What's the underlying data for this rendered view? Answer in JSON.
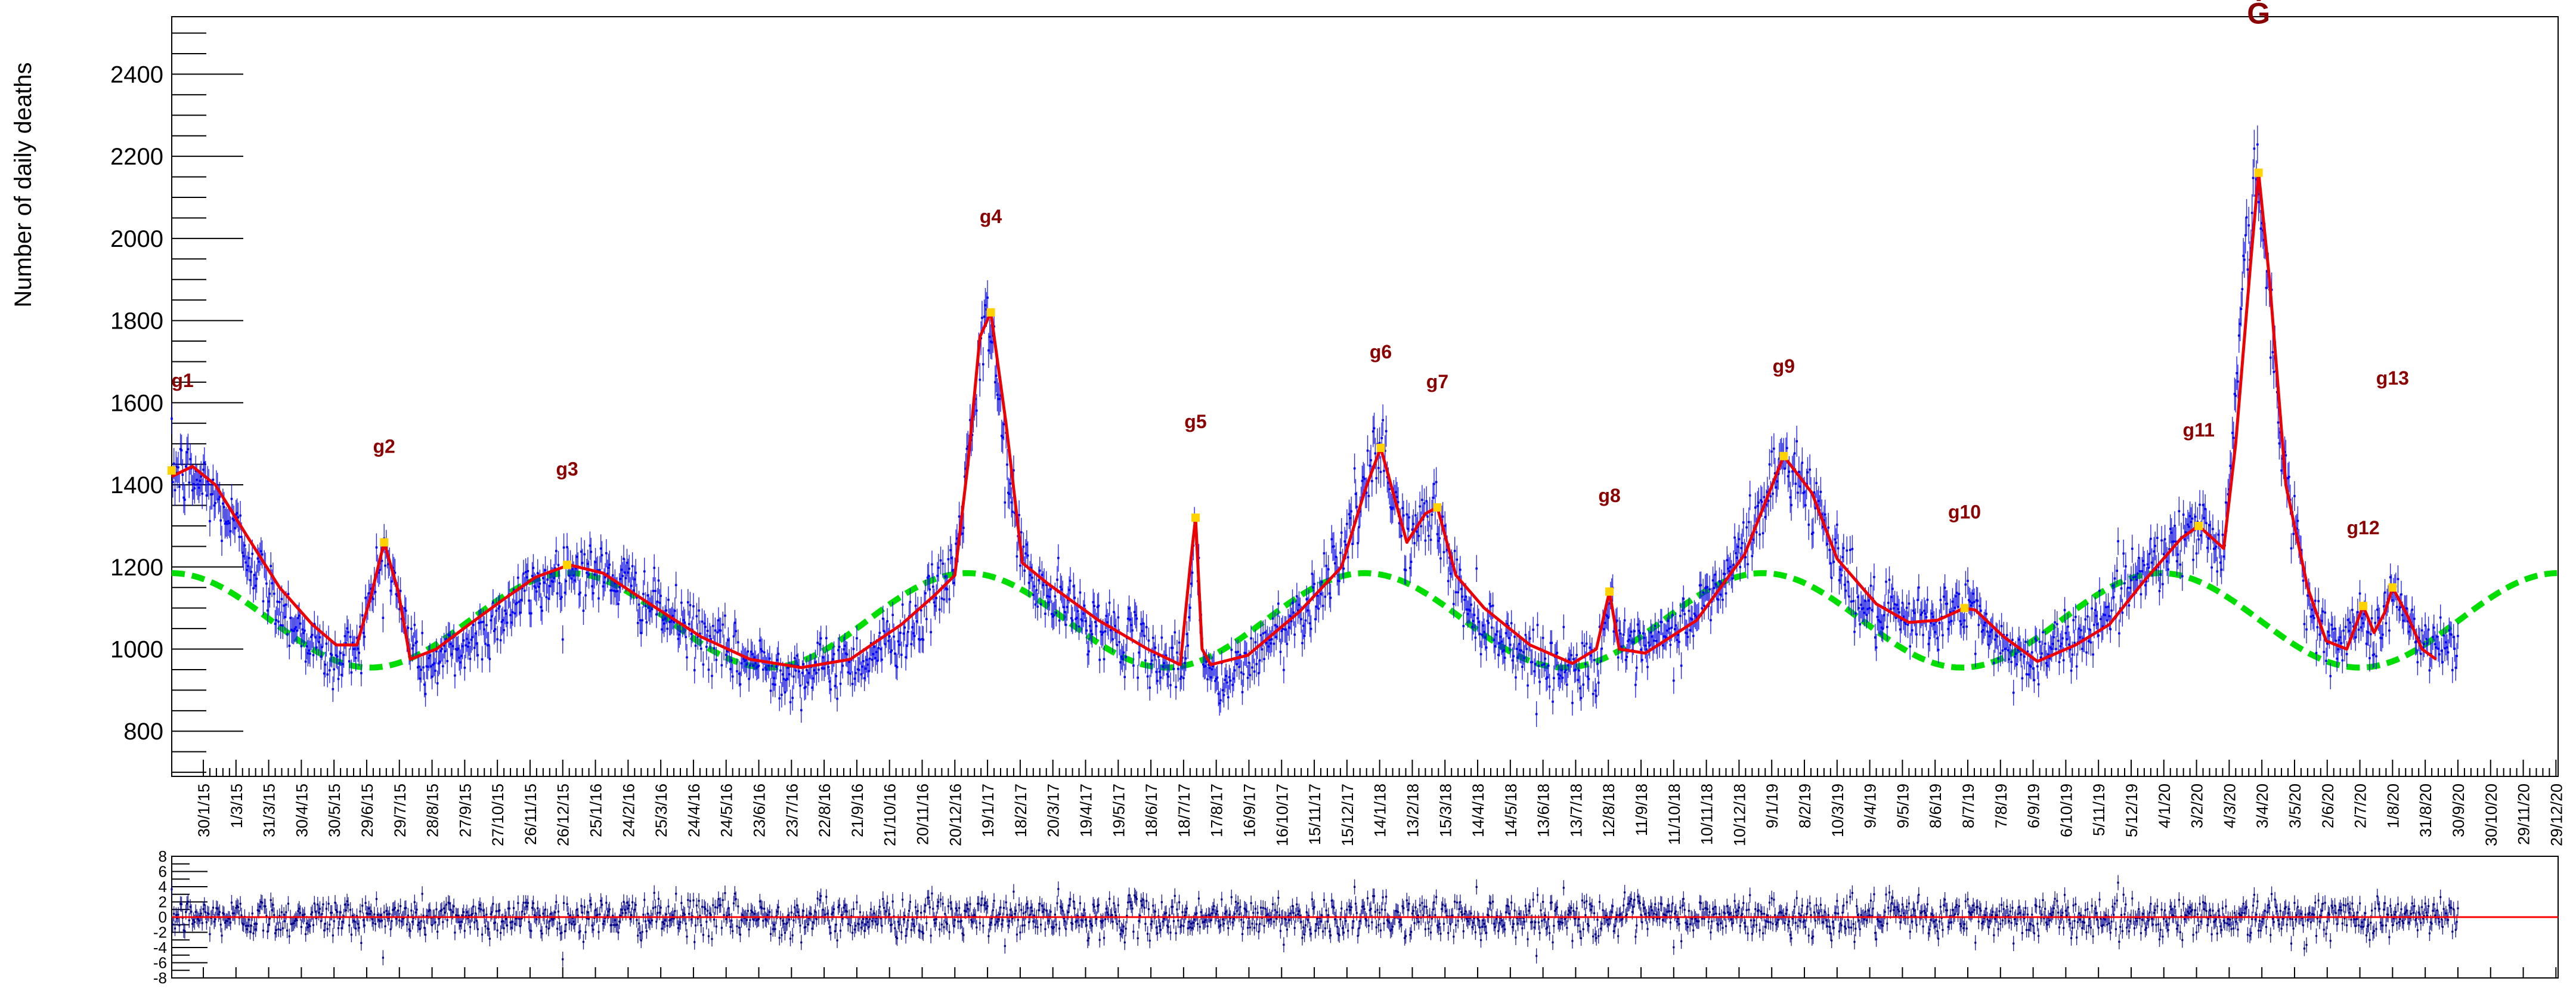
{
  "chart_data": [
    {
      "type": "scatter",
      "title": "",
      "xlabel": "",
      "ylabel": "Number of daily deaths",
      "ylim": [
        690,
        2540
      ],
      "x_range": [
        "2015-01-01",
        "2020-12-31"
      ],
      "yticks": [
        800,
        1000,
        1200,
        1400,
        1600,
        1800,
        2000,
        2200,
        2400
      ],
      "xticks": [
        "30/1/15",
        "1/3/15",
        "31/3/15",
        "30/4/15",
        "30/5/15",
        "29/6/15",
        "29/7/15",
        "28/8/15",
        "27/9/15",
        "27/10/15",
        "26/11/15",
        "26/12/15",
        "25/1/16",
        "24/2/16",
        "25/3/16",
        "24/4/16",
        "24/5/16",
        "23/6/16",
        "23/7/16",
        "22/8/16",
        "21/9/16",
        "21/10/16",
        "20/11/16",
        "20/12/16",
        "19/1/17",
        "18/2/17",
        "20/3/17",
        "19/4/17",
        "19/5/17",
        "18/6/17",
        "18/7/17",
        "17/8/17",
        "16/9/17",
        "16/10/17",
        "15/11/17",
        "15/12/17",
        "14/1/18",
        "13/2/18",
        "15/3/18",
        "14/4/18",
        "14/5/18",
        "13/6/18",
        "13/7/18",
        "12/8/18",
        "11/9/18",
        "11/10/18",
        "10/11/18",
        "10/12/18",
        "9/1/19",
        "8/2/19",
        "10/3/19",
        "9/4/19",
        "9/5/19",
        "8/6/19",
        "8/7/19",
        "7/8/19",
        "6/9/19",
        "6/10/19",
        "5/11/19",
        "5/12/19",
        "4/1/20",
        "3/2/20",
        "4/3/20",
        "3/4/20",
        "3/5/20",
        "2/6/20",
        "2/7/20",
        "1/8/20",
        "31/8/20",
        "30/9/20",
        "30/10/20",
        "29/11/20",
        "29/12/20"
      ],
      "grid": false,
      "legend": "none",
      "series": [
        {
          "role": "daily deaths with error bars",
          "color": "#0000ff",
          "base_points": [
            [
              "2015-01-01",
              1440
            ],
            [
              "2015-02-01",
              1400
            ],
            [
              "2015-03-01",
              1290
            ],
            [
              "2015-04-01",
              1140
            ],
            [
              "2015-05-01",
              1040
            ],
            [
              "2015-06-01",
              960
            ],
            [
              "2015-06-25",
              1040
            ],
            [
              "2015-07-15",
              1250
            ],
            [
              "2015-08-01",
              1080
            ],
            [
              "2015-08-20",
              950
            ],
            [
              "2015-10-01",
              1010
            ],
            [
              "2015-11-15",
              1120
            ],
            [
              "2016-01-01",
              1200
            ],
            [
              "2016-02-15",
              1170
            ],
            [
              "2016-04-01",
              1080
            ],
            [
              "2016-06-01",
              980
            ],
            [
              "2016-08-01",
              940
            ],
            [
              "2016-10-01",
              980
            ],
            [
              "2016-11-20",
              1080
            ],
            [
              "2016-12-20",
              1200
            ],
            [
              "2017-01-10",
              1650
            ],
            [
              "2017-01-20",
              1820
            ],
            [
              "2017-02-10",
              1350
            ],
            [
              "2017-03-01",
              1150
            ],
            [
              "2017-05-01",
              1060
            ],
            [
              "2017-07-01",
              970
            ],
            [
              "2017-07-20",
              960
            ],
            [
              "2017-07-28",
              1320
            ],
            [
              "2017-08-05",
              980
            ],
            [
              "2017-08-20",
              900
            ],
            [
              "2017-10-01",
              1010
            ],
            [
              "2017-11-15",
              1120
            ],
            [
              "2017-12-20",
              1300
            ],
            [
              "2018-01-15",
              1490
            ],
            [
              "2018-02-08",
              1260
            ],
            [
              "2018-03-05",
              1340
            ],
            [
              "2018-04-01",
              1110
            ],
            [
              "2018-05-15",
              1010
            ],
            [
              "2018-07-01",
              950
            ],
            [
              "2018-08-01",
              960
            ],
            [
              "2018-08-14",
              1130
            ],
            [
              "2018-08-28",
              970
            ],
            [
              "2018-10-15",
              1040
            ],
            [
              "2018-12-01",
              1180
            ],
            [
              "2019-01-01",
              1350
            ],
            [
              "2019-01-20",
              1470
            ],
            [
              "2019-02-20",
              1350
            ],
            [
              "2019-04-01",
              1100
            ],
            [
              "2019-05-15",
              1060
            ],
            [
              "2019-07-10",
              1100
            ],
            [
              "2019-08-15",
              990
            ],
            [
              "2019-09-15",
              980
            ],
            [
              "2019-11-01",
              1060
            ],
            [
              "2019-12-15",
              1200
            ],
            [
              "2020-02-05",
              1300
            ],
            [
              "2020-02-28",
              1240
            ],
            [
              "2020-03-20",
              2000
            ],
            [
              "2020-03-31",
              2160
            ],
            [
              "2020-04-20",
              1500
            ],
            [
              "2020-05-20",
              1070
            ],
            [
              "2020-06-15",
              990
            ],
            [
              "2020-07-05",
              1100
            ],
            [
              "2020-07-18",
              1020
            ],
            [
              "2020-08-01",
              1150
            ],
            [
              "2020-08-25",
              1010
            ],
            [
              "2020-09-30",
              1000
            ]
          ]
        },
        {
          "role": "red fitted curve",
          "color": "#ee0000",
          "points": [
            [
              "2015-01-01",
              1420
            ],
            [
              "2015-01-20",
              1445
            ],
            [
              "2015-02-10",
              1400
            ],
            [
              "2015-03-10",
              1280
            ],
            [
              "2015-04-10",
              1150
            ],
            [
              "2015-05-10",
              1060
            ],
            [
              "2015-06-01",
              1010
            ],
            [
              "2015-06-20",
              1010
            ],
            [
              "2015-07-03",
              1130
            ],
            [
              "2015-07-15",
              1260
            ],
            [
              "2015-07-28",
              1140
            ],
            [
              "2015-08-08",
              975
            ],
            [
              "2015-09-01",
              1000
            ],
            [
              "2015-10-01",
              1060
            ],
            [
              "2015-11-01",
              1120
            ],
            [
              "2015-12-01",
              1175
            ],
            [
              "2016-01-01",
              1205
            ],
            [
              "2016-02-01",
              1185
            ],
            [
              "2016-03-15",
              1110
            ],
            [
              "2016-05-01",
              1030
            ],
            [
              "2016-06-15",
              975
            ],
            [
              "2016-08-01",
              955
            ],
            [
              "2016-09-15",
              975
            ],
            [
              "2016-11-01",
              1060
            ],
            [
              "2016-12-01",
              1130
            ],
            [
              "2016-12-20",
              1180
            ],
            [
              "2017-01-01",
              1450
            ],
            [
              "2017-01-12",
              1760
            ],
            [
              "2017-01-22",
              1820
            ],
            [
              "2017-02-05",
              1550
            ],
            [
              "2017-02-20",
              1210
            ],
            [
              "2017-03-15",
              1160
            ],
            [
              "2017-05-01",
              1070
            ],
            [
              "2017-06-15",
              1000
            ],
            [
              "2017-07-15",
              962
            ],
            [
              "2017-07-24",
              1200
            ],
            [
              "2017-07-29",
              1320
            ],
            [
              "2017-08-04",
              1000
            ],
            [
              "2017-08-12",
              962
            ],
            [
              "2017-09-15",
              985
            ],
            [
              "2017-11-01",
              1090
            ],
            [
              "2017-12-10",
              1200
            ],
            [
              "2018-01-01",
              1390
            ],
            [
              "2018-01-15",
              1490
            ],
            [
              "2018-02-08",
              1260
            ],
            [
              "2018-02-25",
              1330
            ],
            [
              "2018-03-08",
              1345
            ],
            [
              "2018-03-25",
              1180
            ],
            [
              "2018-04-20",
              1100
            ],
            [
              "2018-06-01",
              1010
            ],
            [
              "2018-07-10",
              965
            ],
            [
              "2018-08-01",
              1000
            ],
            [
              "2018-08-13",
              1140
            ],
            [
              "2018-08-22",
              1000
            ],
            [
              "2018-09-15",
              990
            ],
            [
              "2018-11-01",
              1070
            ],
            [
              "2018-12-15",
              1230
            ],
            [
              "2019-01-20",
              1470
            ],
            [
              "2019-02-15",
              1380
            ],
            [
              "2019-03-10",
              1220
            ],
            [
              "2019-04-15",
              1110
            ],
            [
              "2019-05-15",
              1065
            ],
            [
              "2019-06-10",
              1070
            ],
            [
              "2019-07-05",
              1100
            ],
            [
              "2019-07-15",
              1095
            ],
            [
              "2019-08-10",
              1030
            ],
            [
              "2019-09-10",
              970
            ],
            [
              "2019-10-15",
              1010
            ],
            [
              "2019-11-15",
              1060
            ],
            [
              "2019-12-15",
              1160
            ],
            [
              "2020-01-20",
              1270
            ],
            [
              "2020-02-05",
              1300
            ],
            [
              "2020-02-28",
              1245
            ],
            [
              "2020-03-10",
              1500
            ],
            [
              "2020-03-24",
              1950
            ],
            [
              "2020-03-31",
              2160
            ],
            [
              "2020-04-10",
              1900
            ],
            [
              "2020-04-25",
              1400
            ],
            [
              "2020-05-15",
              1150
            ],
            [
              "2020-06-01",
              1020
            ],
            [
              "2020-06-20",
              1000
            ],
            [
              "2020-07-05",
              1105
            ],
            [
              "2020-07-15",
              1040
            ],
            [
              "2020-07-25",
              1090
            ],
            [
              "2020-08-01",
              1150
            ],
            [
              "2020-08-15",
              1080
            ],
            [
              "2020-08-28",
              1000
            ],
            [
              "2020-09-10",
              975
            ]
          ]
        },
        {
          "role": "green baseline",
          "color": "#00dd00",
          "baseline": {
            "mean": 1070,
            "amplitude": 115,
            "peak_date": "2016-01-01",
            "period_days": 365.25,
            "start": "2015-01-01",
            "end": "2020-12-31"
          }
        }
      ],
      "markers": [
        {
          "label": "g1",
          "date": "2015-01-01",
          "value": 1435
        },
        {
          "label": "g2",
          "date": "2015-07-15",
          "value": 1260
        },
        {
          "label": "g3",
          "date": "2015-12-30",
          "value": 1205
        },
        {
          "label": "g4",
          "date": "2017-01-22",
          "value": 1820
        },
        {
          "label": "g5",
          "date": "2017-07-29",
          "value": 1320
        },
        {
          "label": "g6",
          "date": "2018-01-15",
          "value": 1490
        },
        {
          "label": "g7",
          "date": "2018-03-08",
          "value": 1345
        },
        {
          "label": "g8",
          "date": "2018-08-13",
          "value": 1140
        },
        {
          "label": "g9",
          "date": "2019-01-20",
          "value": 1470
        },
        {
          "label": "g10",
          "date": "2019-07-05",
          "value": 1100
        },
        {
          "label": "g11",
          "date": "2020-02-05",
          "value": 1300
        },
        {
          "label": "Ġ",
          "date": "2020-03-31",
          "value": 2160
        },
        {
          "label": "g12",
          "date": "2020-07-05",
          "value": 1105
        },
        {
          "label": "g13",
          "date": "2020-08-01",
          "value": 1150
        }
      ],
      "marker_color": "#ffd200",
      "label_color": "#8b0000"
    },
    {
      "type": "scatter",
      "title": "",
      "xlabel": "",
      "ylabel": "",
      "ylim": [
        -8,
        8
      ],
      "yticks": [
        -8,
        -6,
        -4,
        -2,
        0,
        2,
        4,
        6,
        8
      ],
      "reference_line": {
        "value": 0,
        "color": "#ff0000"
      },
      "series": [
        {
          "role": "residuals",
          "color": "#00008b"
        }
      ]
    }
  ]
}
